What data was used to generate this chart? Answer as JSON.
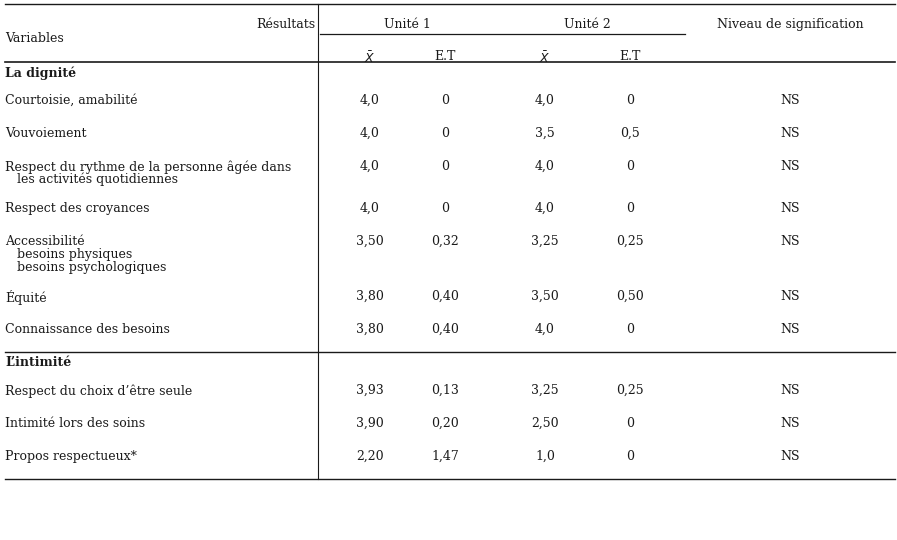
{
  "sections": [
    {
      "section_label": "La dignité",
      "rows": [
        {
          "label": "Courtoisie, amabilité",
          "lines": 1,
          "u1_mean": "4,0",
          "u1_et": "0",
          "u2_mean": "4,0",
          "u2_et": "0",
          "sig": "NS"
        },
        {
          "label": "Vouvoiement",
          "lines": 1,
          "u1_mean": "4,0",
          "u1_et": "0",
          "u2_mean": "3,5",
          "u2_et": "0,5",
          "sig": "NS"
        },
        {
          "label": "Respect du rythme de la personne âgée dans\nles activités quotidiennes",
          "lines": 2,
          "u1_mean": "4,0",
          "u1_et": "0",
          "u2_mean": "4,0",
          "u2_et": "0",
          "sig": "NS"
        },
        {
          "label": "Respect des croyances",
          "lines": 1,
          "u1_mean": "4,0",
          "u1_et": "0",
          "u2_mean": "4,0",
          "u2_et": "0",
          "sig": "NS"
        },
        {
          "label": "Accessibilité\n    besoins physiques\n    besoins psychologiques",
          "lines": 3,
          "u1_mean": "3,50",
          "u1_et": "0,32",
          "u2_mean": "3,25",
          "u2_et": "0,25",
          "sig": "NS"
        },
        {
          "label": "Équité",
          "lines": 1,
          "u1_mean": "3,80",
          "u1_et": "0,40",
          "u2_mean": "3,50",
          "u2_et": "0,50",
          "sig": "NS"
        },
        {
          "label": "Connaissance des besoins",
          "lines": 1,
          "u1_mean": "3,80",
          "u1_et": "0,40",
          "u2_mean": "4,0",
          "u2_et": "0",
          "sig": "NS"
        }
      ]
    },
    {
      "section_label": "L’intimité",
      "rows": [
        {
          "label": "Respect du choix d’être seule",
          "lines": 1,
          "u1_mean": "3,93",
          "u1_et": "0,13",
          "u2_mean": "3,25",
          "u2_et": "0,25",
          "sig": "NS"
        },
        {
          "label": "Intimité lors des soins",
          "lines": 1,
          "u1_mean": "3,90",
          "u1_et": "0,20",
          "u2_mean": "2,50",
          "u2_et": "0",
          "sig": "NS"
        },
        {
          "label": "Propos respectueux*",
          "lines": 1,
          "u1_mean": "2,20",
          "u1_et": "1,47",
          "u2_mean": "1,0",
          "u2_et": "0",
          "sig": "NS"
        }
      ]
    }
  ],
  "bg_color": "#ffffff",
  "text_color": "#1a1a1a",
  "font_size": 9.0,
  "font_family": "DejaVu Serif"
}
